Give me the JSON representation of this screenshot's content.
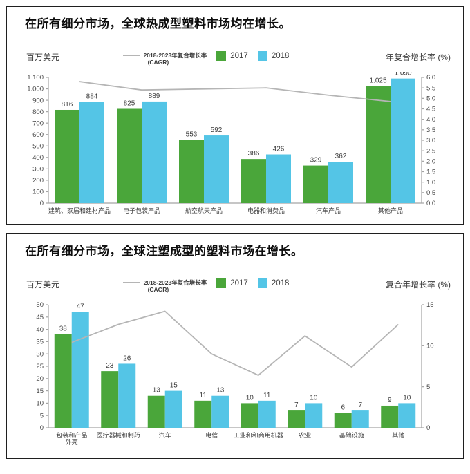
{
  "colors": {
    "bar_2017": "#4aa63a",
    "bar_2018": "#54c5e6",
    "cagr_line": "#b5b5b5",
    "axis": "#a3a3a3",
    "tick_text": "#464646",
    "label_text": "#3d3d3d",
    "title_text": "#0d0d0d",
    "panel_border": "#1f1f1f"
  },
  "chart_data": [
    {
      "type": "bar",
      "title": "在所有细分市场，全球热成型塑料市场均在增长。",
      "left_axis_title": "百万美元",
      "right_axis_title": "年复合增长率 (%)",
      "legend": {
        "cagr_line1": "2018-2023年复合增长率",
        "cagr_line2": "(CAGR)",
        "s2017": "2017",
        "s2018": "2018"
      },
      "categories": [
        "建筑、家居和建材产品",
        "电子包装产品",
        "航空航天产品",
        "电器和消费品",
        "汽车产品",
        "其他产品"
      ],
      "series": [
        {
          "name": "2017",
          "values": [
            816,
            825,
            553,
            386,
            329,
            1025
          ],
          "labels": [
            "816",
            "825",
            "553",
            "386",
            "329",
            "1.025"
          ]
        },
        {
          "name": "2018",
          "values": [
            884,
            889,
            592,
            426,
            362,
            1090
          ],
          "labels": [
            "884",
            "889",
            "592",
            "426",
            "362",
            "1.090"
          ]
        }
      ],
      "left_axis": {
        "min": 0,
        "max": 1100,
        "step": 100,
        "ticks": [
          "0",
          "100",
          "200",
          "300",
          "400",
          "500",
          "600",
          "700",
          "800",
          "900",
          "1.000",
          "1.100"
        ]
      },
      "right_axis": {
        "min": 0,
        "max": 6,
        "step": 0.5,
        "ticks": [
          "0,0",
          "0,5",
          "1,0",
          "1,5",
          "2,0",
          "2,5",
          "3,0",
          "3,5",
          "4,0",
          "4,5",
          "5,0",
          "5,5",
          "6,0"
        ]
      },
      "cagr_line": {
        "name": "2018-2023年复合增长率 (CAGR)",
        "axis": "right",
        "values": [
          5.8,
          5.4,
          5.45,
          5.5,
          5.15,
          4.85
        ]
      },
      "grid": false,
      "legend_position": "top-center"
    },
    {
      "type": "bar",
      "title": "在所有细分市场，全球注塑成型的塑料市场在增长。",
      "left_axis_title": "百万美元",
      "right_axis_title": "复合年增长率 (%)",
      "legend": {
        "cagr_line1": "2018-2023年复合增长率",
        "cagr_line2": "(CAGR)",
        "s2017": "2017",
        "s2018": "2018"
      },
      "categories": [
        "包装和产品\n外壳",
        "医疗器械和制药",
        "汽车",
        "电信",
        "工业和和商用机器",
        "农业",
        "基础设施",
        "其他"
      ],
      "series": [
        {
          "name": "2017",
          "values": [
            38,
            23,
            13,
            11,
            10,
            7,
            6,
            9
          ],
          "labels": [
            "38",
            "23",
            "13",
            "11",
            "10",
            "7",
            "6",
            "9"
          ]
        },
        {
          "name": "2018",
          "values": [
            47,
            26,
            15,
            13,
            11,
            10,
            7,
            10
          ],
          "labels": [
            "47",
            "26",
            "15",
            "13",
            "11",
            "10",
            "7",
            "10"
          ]
        }
      ],
      "left_axis": {
        "min": 0,
        "max": 50,
        "step": 5,
        "ticks": [
          "0",
          "5",
          "10",
          "15",
          "20",
          "25",
          "30",
          "35",
          "40",
          "45",
          "50"
        ]
      },
      "right_axis": {
        "min": 0,
        "max": 15,
        "step": 5,
        "ticks": [
          "0",
          "5",
          "10",
          "15"
        ]
      },
      "cagr_line": {
        "name": "2018-2023年复合增长率 (CAGR)",
        "axis": "right",
        "values": [
          10.4,
          12.6,
          14.2,
          9.0,
          6.4,
          11.2,
          7.4,
          12.6
        ]
      },
      "grid": false,
      "legend_position": "top-center"
    }
  ]
}
